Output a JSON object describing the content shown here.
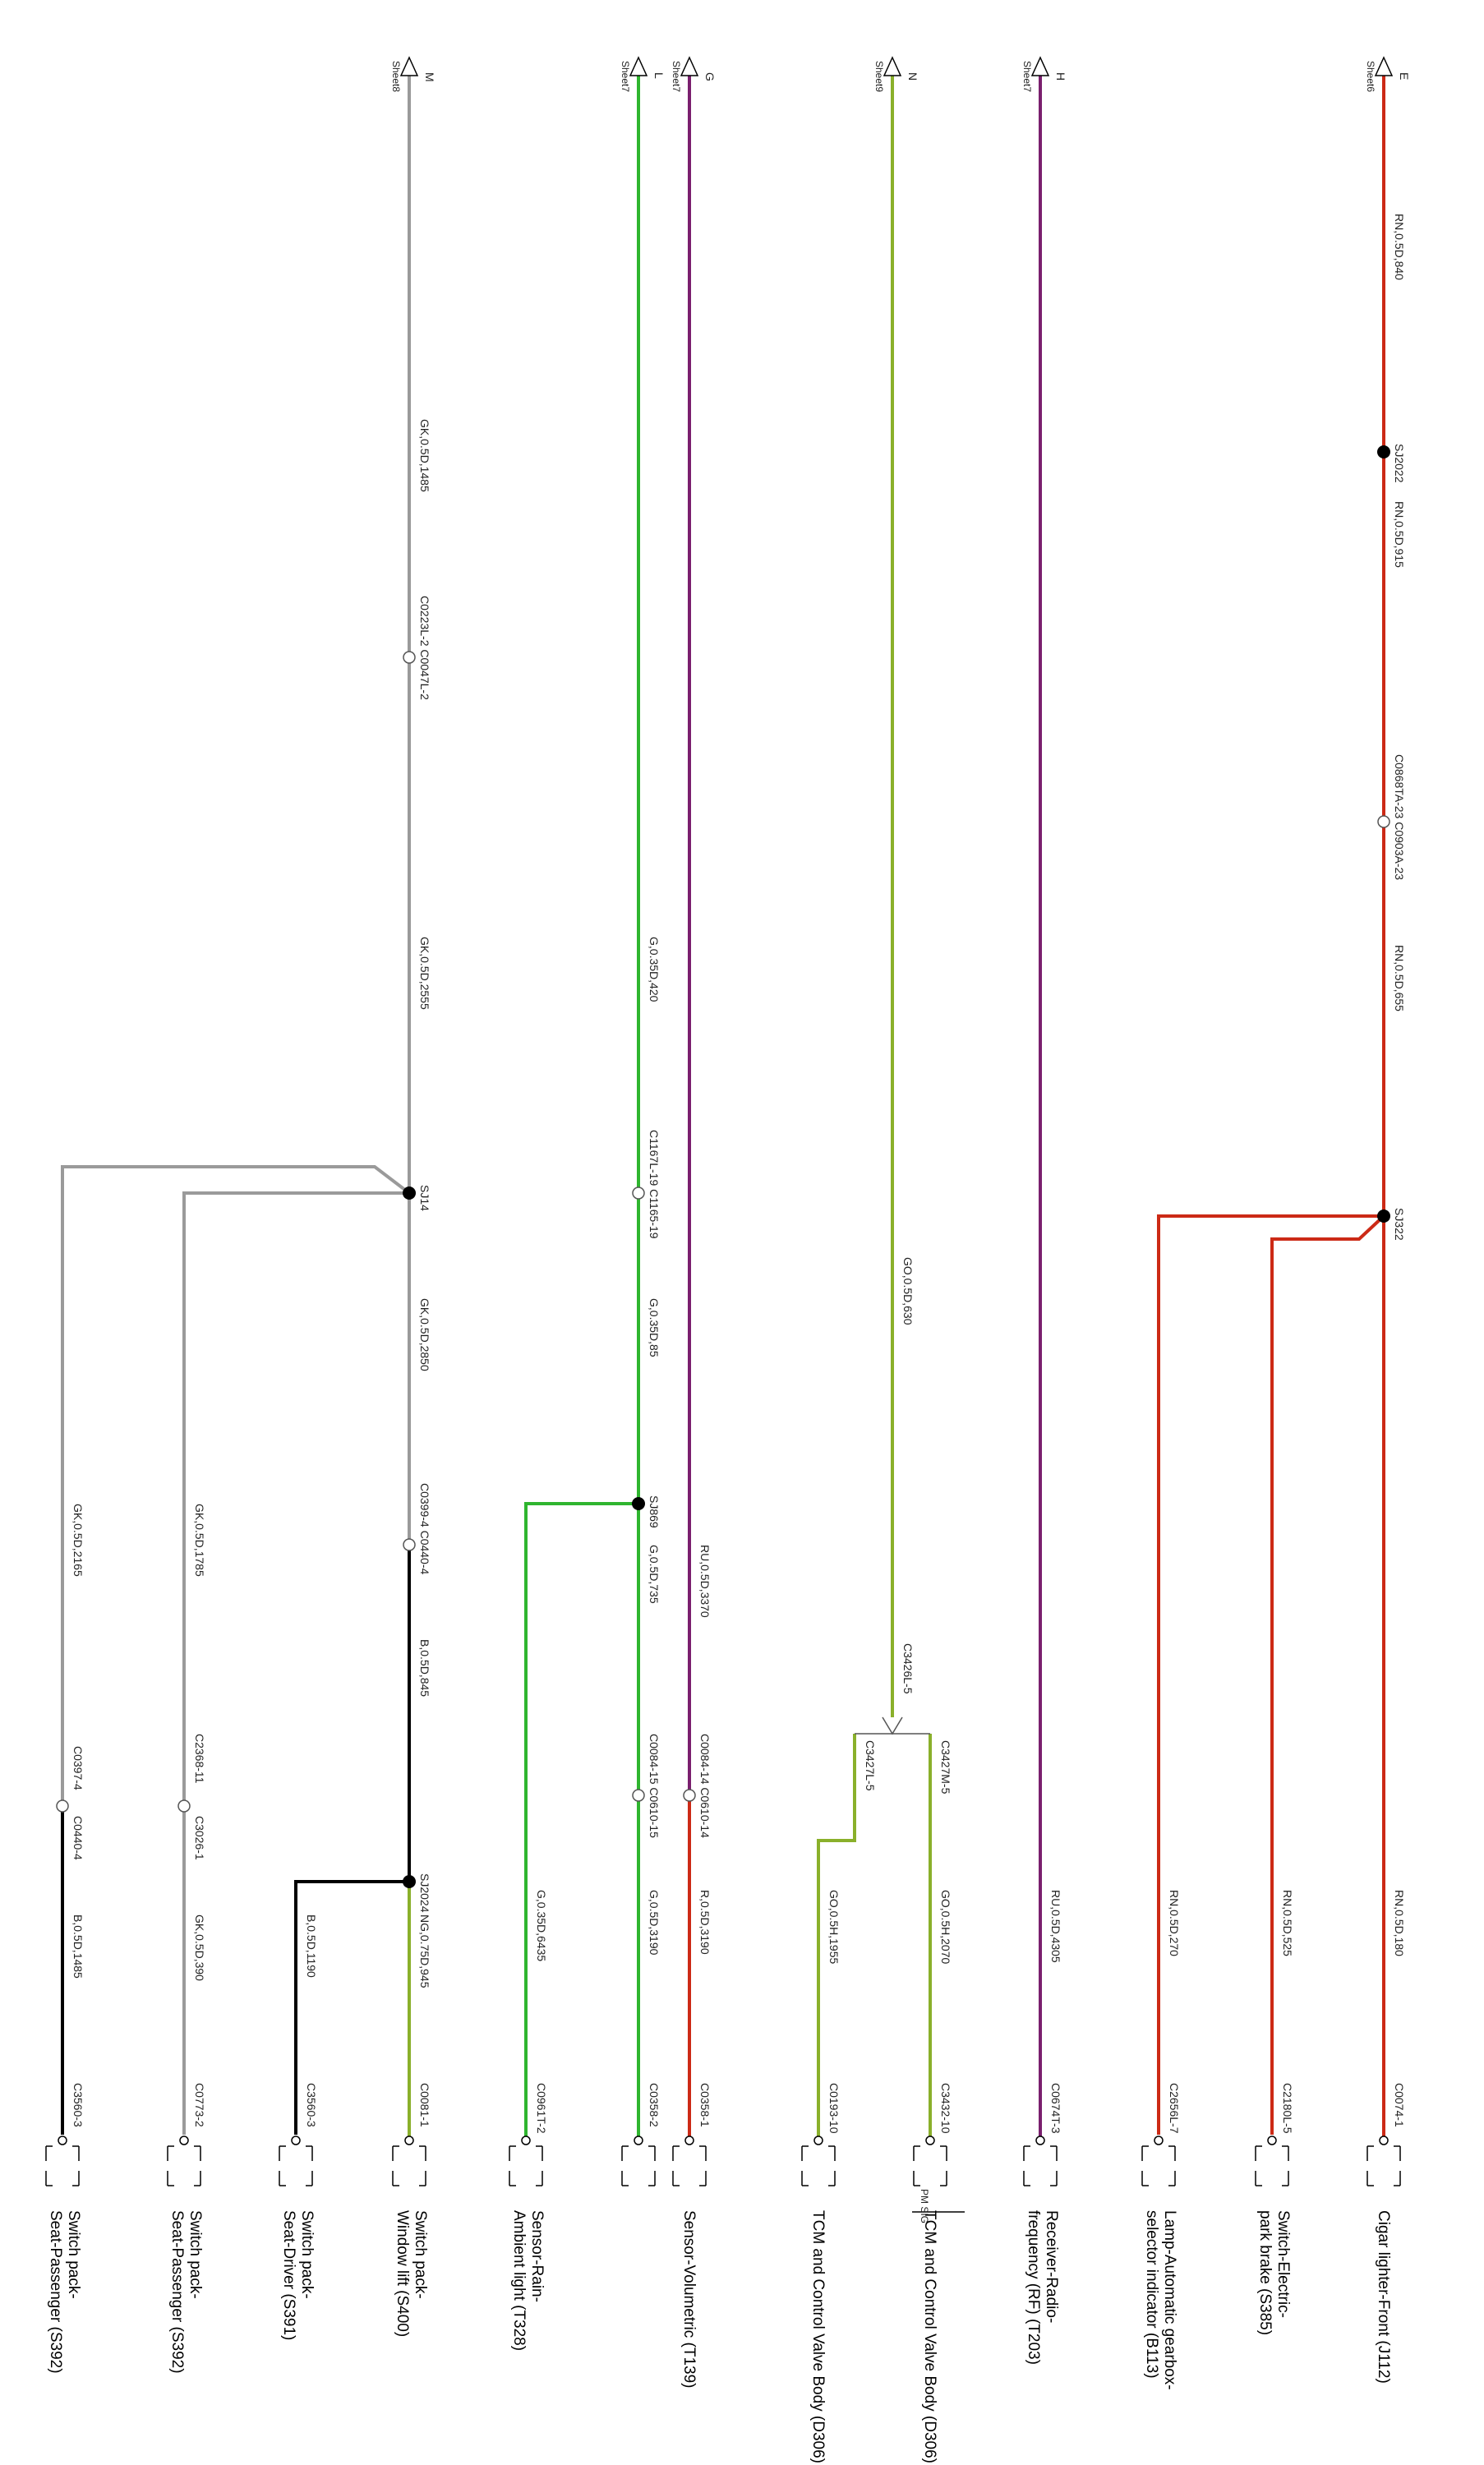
{
  "colors": {
    "red": "#cc2a16",
    "purple": "#7a1f6e",
    "yellow_green": "#8ab02b",
    "green": "#2fb52f",
    "grey_pink": "#9a9a9a",
    "black": "#000000"
  },
  "sheet_refs": {
    "E": {
      "letter": "E",
      "sheet": "Sheet6"
    },
    "H": {
      "letter": "H",
      "sheet": "Sheet7"
    },
    "N": {
      "letter": "N",
      "sheet": "Sheet9"
    },
    "G": {
      "letter": "G",
      "sheet": "Sheet7"
    },
    "L": {
      "letter": "L",
      "sheet": "Sheet7"
    },
    "M": {
      "letter": "M",
      "sheet": "Sheet8"
    }
  },
  "wires": {
    "e1": "RN,0.5D,840",
    "e2": "RN,0.5D,915",
    "e3": "RN,0.5D,655",
    "e4": "RN,0.5D,180",
    "e5": "RN,0.5D,525",
    "e6": "RN,0.5D,270",
    "h1": "RU,0.5D,4305",
    "n1": "GO,0.5D,630",
    "n2": "GO,0.5H,2070",
    "n3": "GO,0.5H,1955",
    "g1": "RU,0.5D,3370",
    "g2": "R,0.5D,3190",
    "l1": "G,0.35D,420",
    "l2": "G,0.35D,85",
    "l3": "G,0.5D,735",
    "l4": "G,0.5D,3190",
    "l5": "G,0.35D,6435",
    "m1": "GK,0.5D,1485",
    "m2": "GK,0.5D,2555",
    "m3": "GK,0.5D,2850",
    "m4": "B,0.5D,845",
    "m5": "NG,0.75D,945",
    "m6": "B,0.5D,1190",
    "m7": "GK,0.5D,1785",
    "m8": "GK,0.5D,390",
    "m9": "GK,0.5D,2165",
    "m10": "B,0.5D,1485"
  },
  "splices": {
    "sj2022": "SJ2022",
    "sj322": "SJ322",
    "sj14": "SJ14",
    "sj869": "SJ869",
    "sj2024": "SJ2024"
  },
  "connectors": {
    "c_e_mid": "C0868TA-23 C0903A-23",
    "c_g": "C0084-14 C0610-14",
    "c_l1": "C1167L-19 C1165-19",
    "c_l2": "C0084-15 C0610-15",
    "c_m1": "C0223L-2 C0047L-2",
    "c_m2": "C0399-4 C0440-4",
    "c_m3a": "C2368-11",
    "c_m3b": "C3026-1",
    "c_m4a": "C0397-4",
    "c_m4b": "C0440-4",
    "c_n": "C3426L-5",
    "c_n_right": "C3427M-5",
    "c_n_left": "C3427L-5",
    "pin_e": "C0074-1",
    "pin_e5": "C2180L-5",
    "pin_e6": "C2656L-7",
    "pin_h": "C0674T-3",
    "pin_n_right": "C3432-10",
    "pin_n_left": "C0193-10",
    "pin_g": "C0358-1",
    "pin_l": "C0358-2",
    "pin_l5": "C0961T-2",
    "pin_m5": "C0081-1",
    "pin_m6": "C3560-3",
    "pin_m8": "C0773-2",
    "pin_m10": "C3560-3"
  },
  "components": {
    "cigar": "Cigar lighter-Front (J112)",
    "park_brake": [
      "Switch-Electric-",
      "park brake (S385)"
    ],
    "lamp_gearbox": [
      "Lamp-Automatic gearbox-",
      "selector indicator (B113)"
    ],
    "receiver": [
      "Receiver-Radio-",
      "frequency (RF) (T203)"
    ],
    "tcm_right": "TCM and Control Valve Body (D306)",
    "pin_label_pm": "PM SIG",
    "tcm_left": "TCM and Control Valve Body (D306)",
    "volumetric": "Sensor-Volumetric (T139)",
    "rain": [
      "Sensor-Rain-",
      "Ambient light (T328)"
    ],
    "window_lift": [
      "Switch pack-",
      "Window lift (S400)"
    ],
    "seat_driver": [
      "Switch pack-",
      "Seat-Driver (S391)"
    ],
    "seat_pass_1": [
      "Switch pack-",
      "Seat-Passenger (S392)"
    ],
    "seat_pass_2": [
      "Switch pack-",
      "Seat-Passenger (S392)"
    ]
  }
}
